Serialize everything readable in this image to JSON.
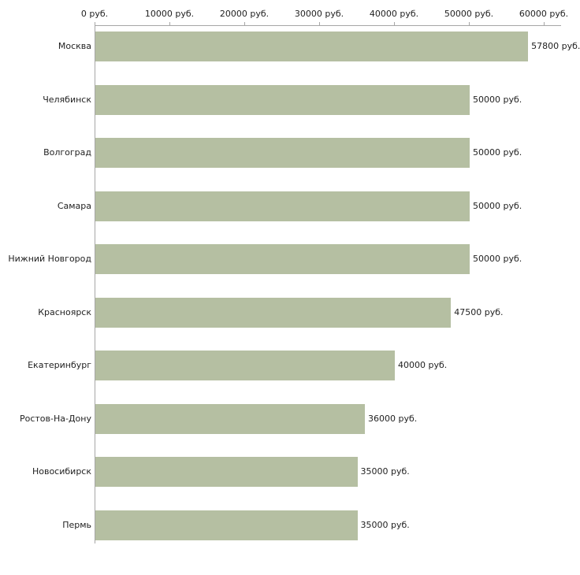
{
  "chart_data": {
    "type": "bar",
    "orientation": "horizontal",
    "title": "",
    "xlabel": "",
    "ylabel": "",
    "grid": false,
    "legend": false,
    "xlim": [
      0,
      60000
    ],
    "x_ticks": [
      {
        "value": 0,
        "label": "0 руб."
      },
      {
        "value": 10000,
        "label": "10000 руб."
      },
      {
        "value": 20000,
        "label": "20000 руб."
      },
      {
        "value": 30000,
        "label": "30000 руб."
      },
      {
        "value": 40000,
        "label": "40000 руб."
      },
      {
        "value": 50000,
        "label": "50000 руб."
      },
      {
        "value": 60000,
        "label": "60000 руб."
      }
    ],
    "categories": [
      "Москва",
      "Челябинск",
      "Волгоград",
      "Самара",
      "Нижний Новгород",
      "Красноярск",
      "Екатеринбург",
      "Ростов-На-Дону",
      "Новосибирск",
      "Пермь"
    ],
    "values": [
      57800,
      50000,
      50000,
      50000,
      50000,
      47500,
      40000,
      36000,
      35000,
      35000
    ],
    "value_labels": [
      "57800 руб.",
      "50000 руб.",
      "50000 руб.",
      "50000 руб.",
      "50000 руб.",
      "47500 руб.",
      "40000 руб.",
      "36000 руб.",
      "35000 руб.",
      "35000 руб."
    ],
    "bar_color": "#b5bfa2",
    "axis_color": "#a6a6a6",
    "text_color": "#222222",
    "background_color": "#ffffff"
  }
}
